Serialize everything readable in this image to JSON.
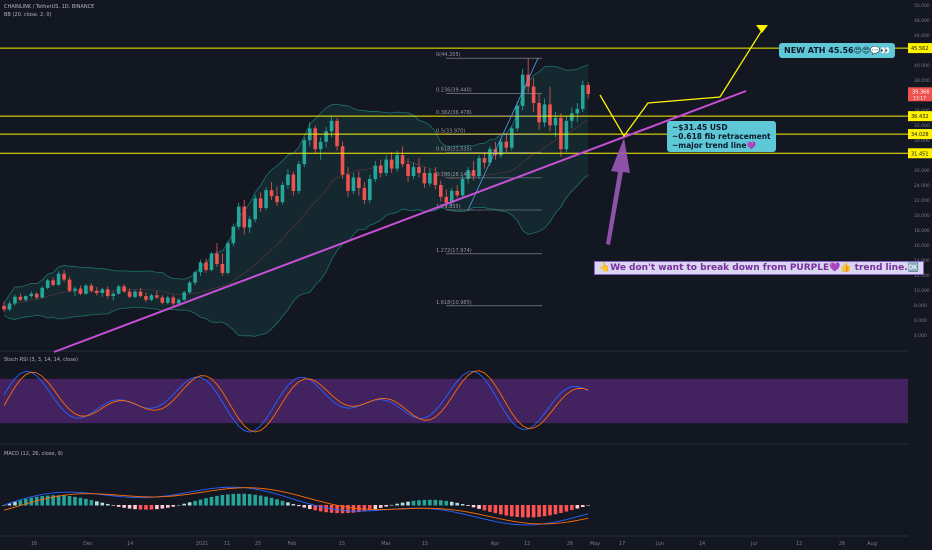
{
  "header": {
    "symbol": "CHAINLINK / TetherUS, 1D, BINANCE",
    "indicator": "BB (20, close, 2, 0)"
  },
  "panels": {
    "stoch_label": "Stoch RSI (3, 3, 14, 14, close)",
    "macd_label": "MACD (12, 26, close, 9)"
  },
  "annotations": {
    "ath": "NEW ATH 45.56😍😍💬👀",
    "fib_line1": "~$31.45 USD",
    "fib_line2": "~0.618 fib retracement",
    "fib_line3": "~major trend line💜",
    "warning": "👆We don't want to break down from PURPLE💜👍 trend line.🆗"
  },
  "colors": {
    "background": "#131722",
    "up": "#26a69a",
    "down": "#ef5350",
    "level": "#fff200",
    "trend": "#c84fd6",
    "fib": "#5ba0e8",
    "stoch_band": "#6a2c91",
    "stoch_k": "#2962ff",
    "stoch_d": "#ff6d00",
    "price_tag": "#ef5350"
  },
  "chart_data": {
    "type": "candlestick",
    "title": "CHAINLINK / TetherUS, 1D, BINANCE",
    "y_axis_labels": [
      "50.000",
      "48.000",
      "44.000",
      "42.000",
      "40.000",
      "38.000",
      "36.000",
      "34.000",
      "32.000",
      "30.000",
      "28.000",
      "26.000",
      "24.000",
      "22.000",
      "20.000",
      "18.000",
      "16.000",
      "14.000",
      "12.000",
      "10.000",
      "8.000",
      "6.000",
      "4.000"
    ],
    "x_axis_labels": [
      "16",
      "Dec",
      "14",
      "2021",
      "11",
      "25",
      "Feb",
      "15",
      "Mar",
      "15",
      "Apr",
      "12",
      "26",
      "May",
      "17",
      "Jun",
      "14",
      "Jul",
      "12",
      "26",
      "Aug"
    ],
    "price_scale": [
      6,
      50
    ],
    "horizontal_levels": [
      {
        "label": "45.562",
        "value": 45.562
      },
      {
        "label": "36.432",
        "value": 36.432
      },
      {
        "label": "34.028",
        "value": 34.028
      },
      {
        "label": "31.451",
        "value": 31.451
      }
    ],
    "current_price": {
      "label": "39.366",
      "value": 39.366,
      "countdown": "13:17"
    },
    "fibonacci": [
      {
        "label": "0(44.205)",
        "value": 44.2
      },
      {
        "label": "0.236(39.440)",
        "value": 39.44
      },
      {
        "label": "0.382(36.478)",
        "value": 36.48
      },
      {
        "label": "0.5(33.970)",
        "value": 33.97
      },
      {
        "label": "0.618(31.535)",
        "value": 31.54
      },
      {
        "label": "0.786(28.145)",
        "value": 28.15
      },
      {
        "label": "1(23.835)",
        "value": 23.84
      },
      {
        "label": "1.272(17.974)",
        "value": 17.97
      },
      {
        "label": "1.618(10.985)",
        "value": 10.99
      }
    ],
    "trend_line": {
      "start": {
        "x": "Nov 20",
        "price": 6.0
      },
      "end": {
        "x": "May 27",
        "price": 36.4
      }
    },
    "projection": [
      {
        "x": "May 7",
        "price": 37.0
      },
      {
        "x": "May 15",
        "price": 31.45
      },
      {
        "x": "May 20",
        "price": 35.0
      },
      {
        "x": "Jun 7",
        "price": 36.4
      },
      {
        "x": "Jun 20",
        "price": 45.56
      }
    ],
    "candles": [
      {
        "o": 11.0,
        "h": 11.5,
        "l": 10.2,
        "c": 10.5
      },
      {
        "o": 10.5,
        "h": 11.6,
        "l": 10.3,
        "c": 11.3
      },
      {
        "o": 11.3,
        "h": 12.5,
        "l": 11.0,
        "c": 12.2
      },
      {
        "o": 12.2,
        "h": 12.6,
        "l": 11.6,
        "c": 11.8
      },
      {
        "o": 11.8,
        "h": 12.4,
        "l": 11.5,
        "c": 12.3
      },
      {
        "o": 12.3,
        "h": 12.9,
        "l": 12.0,
        "c": 12.6
      },
      {
        "o": 12.6,
        "h": 12.8,
        "l": 11.9,
        "c": 12.1
      },
      {
        "o": 12.1,
        "h": 13.6,
        "l": 12.0,
        "c": 13.4
      },
      {
        "o": 13.4,
        "h": 14.6,
        "l": 13.2,
        "c": 14.4
      },
      {
        "o": 14.4,
        "h": 14.8,
        "l": 13.6,
        "c": 13.8
      },
      {
        "o": 13.8,
        "h": 15.6,
        "l": 13.7,
        "c": 15.3
      },
      {
        "o": 15.3,
        "h": 15.8,
        "l": 14.2,
        "c": 14.5
      },
      {
        "o": 14.5,
        "h": 14.9,
        "l": 12.8,
        "c": 13.0
      },
      {
        "o": 13.0,
        "h": 13.6,
        "l": 12.3,
        "c": 13.3
      },
      {
        "o": 13.3,
        "h": 13.7,
        "l": 12.4,
        "c": 12.6
      },
      {
        "o": 12.6,
        "h": 13.9,
        "l": 12.5,
        "c": 13.7
      },
      {
        "o": 13.7,
        "h": 14.0,
        "l": 12.8,
        "c": 13.0
      },
      {
        "o": 13.0,
        "h": 13.5,
        "l": 12.4,
        "c": 12.7
      },
      {
        "o": 12.7,
        "h": 13.4,
        "l": 12.2,
        "c": 13.2
      },
      {
        "o": 13.2,
        "h": 13.6,
        "l": 12.0,
        "c": 12.3
      },
      {
        "o": 12.3,
        "h": 12.9,
        "l": 11.7,
        "c": 12.6
      },
      {
        "o": 12.6,
        "h": 13.8,
        "l": 12.5,
        "c": 13.6
      },
      {
        "o": 13.6,
        "h": 13.9,
        "l": 12.7,
        "c": 12.9
      },
      {
        "o": 12.9,
        "h": 13.3,
        "l": 12.0,
        "c": 12.2
      },
      {
        "o": 12.2,
        "h": 13.1,
        "l": 12.0,
        "c": 12.9
      },
      {
        "o": 12.9,
        "h": 13.4,
        "l": 12.1,
        "c": 12.3
      },
      {
        "o": 12.3,
        "h": 12.8,
        "l": 11.5,
        "c": 11.8
      },
      {
        "o": 11.8,
        "h": 12.6,
        "l": 11.6,
        "c": 12.4
      },
      {
        "o": 12.4,
        "h": 13.0,
        "l": 11.9,
        "c": 12.1
      },
      {
        "o": 12.1,
        "h": 12.4,
        "l": 11.2,
        "c": 11.4
      },
      {
        "o": 11.4,
        "h": 12.3,
        "l": 11.2,
        "c": 12.1
      },
      {
        "o": 12.1,
        "h": 12.4,
        "l": 11.0,
        "c": 11.3
      },
      {
        "o": 11.3,
        "h": 12.0,
        "l": 11.1,
        "c": 11.8
      },
      {
        "o": 11.8,
        "h": 13.0,
        "l": 11.6,
        "c": 12.8
      },
      {
        "o": 12.8,
        "h": 14.3,
        "l": 12.6,
        "c": 14.1
      },
      {
        "o": 14.1,
        "h": 15.7,
        "l": 13.8,
        "c": 15.5
      },
      {
        "o": 15.5,
        "h": 17.2,
        "l": 15.0,
        "c": 16.8
      },
      {
        "o": 16.8,
        "h": 17.3,
        "l": 15.4,
        "c": 15.8
      },
      {
        "o": 15.8,
        "h": 18.2,
        "l": 15.6,
        "c": 18.0
      },
      {
        "o": 18.0,
        "h": 19.4,
        "l": 16.2,
        "c": 16.6
      },
      {
        "o": 16.6,
        "h": 18.0,
        "l": 15.0,
        "c": 15.4
      },
      {
        "o": 15.4,
        "h": 19.7,
        "l": 15.2,
        "c": 19.4
      },
      {
        "o": 19.4,
        "h": 22.0,
        "l": 19.0,
        "c": 21.6
      },
      {
        "o": 21.6,
        "h": 24.8,
        "l": 21.2,
        "c": 24.3
      },
      {
        "o": 24.3,
        "h": 25.2,
        "l": 20.6,
        "c": 21.5
      },
      {
        "o": 21.5,
        "h": 23.0,
        "l": 20.8,
        "c": 22.6
      },
      {
        "o": 22.6,
        "h": 25.9,
        "l": 22.2,
        "c": 25.4
      },
      {
        "o": 25.4,
        "h": 26.2,
        "l": 23.6,
        "c": 24.1
      },
      {
        "o": 24.1,
        "h": 26.9,
        "l": 23.8,
        "c": 26.5
      },
      {
        "o": 26.5,
        "h": 27.6,
        "l": 25.2,
        "c": 25.7
      },
      {
        "o": 25.7,
        "h": 27.0,
        "l": 24.4,
        "c": 24.9
      },
      {
        "o": 24.9,
        "h": 27.6,
        "l": 24.6,
        "c": 27.2
      },
      {
        "o": 27.2,
        "h": 29.3,
        "l": 26.7,
        "c": 28.6
      },
      {
        "o": 28.6,
        "h": 29.0,
        "l": 25.8,
        "c": 26.4
      },
      {
        "o": 26.4,
        "h": 30.4,
        "l": 26.0,
        "c": 30.0
      },
      {
        "o": 30.0,
        "h": 33.6,
        "l": 29.6,
        "c": 33.2
      },
      {
        "o": 33.2,
        "h": 35.6,
        "l": 32.4,
        "c": 34.8
      },
      {
        "o": 34.8,
        "h": 35.2,
        "l": 31.4,
        "c": 32.0
      },
      {
        "o": 32.0,
        "h": 33.6,
        "l": 30.6,
        "c": 33.0
      },
      {
        "o": 33.0,
        "h": 35.0,
        "l": 32.2,
        "c": 34.4
      },
      {
        "o": 34.4,
        "h": 36.4,
        "l": 33.6,
        "c": 35.8
      },
      {
        "o": 35.8,
        "h": 36.2,
        "l": 31.8,
        "c": 32.4
      },
      {
        "o": 32.4,
        "h": 33.0,
        "l": 28.0,
        "c": 28.6
      },
      {
        "o": 28.6,
        "h": 29.6,
        "l": 25.6,
        "c": 26.4
      },
      {
        "o": 26.4,
        "h": 28.8,
        "l": 26.0,
        "c": 28.2
      },
      {
        "o": 28.2,
        "h": 29.0,
        "l": 25.8,
        "c": 26.8
      },
      {
        "o": 26.8,
        "h": 27.6,
        "l": 24.6,
        "c": 25.2
      },
      {
        "o": 25.2,
        "h": 28.6,
        "l": 24.8,
        "c": 28.0
      },
      {
        "o": 28.0,
        "h": 30.4,
        "l": 27.6,
        "c": 29.8
      },
      {
        "o": 29.8,
        "h": 30.6,
        "l": 28.2,
        "c": 28.8
      },
      {
        "o": 28.8,
        "h": 31.2,
        "l": 28.4,
        "c": 30.6
      },
      {
        "o": 30.6,
        "h": 31.6,
        "l": 28.8,
        "c": 29.4
      },
      {
        "o": 29.4,
        "h": 31.8,
        "l": 29.0,
        "c": 31.2
      },
      {
        "o": 31.2,
        "h": 32.4,
        "l": 29.6,
        "c": 30.0
      },
      {
        "o": 30.0,
        "h": 30.8,
        "l": 27.6,
        "c": 28.4
      },
      {
        "o": 28.4,
        "h": 30.2,
        "l": 28.0,
        "c": 29.6
      },
      {
        "o": 29.6,
        "h": 30.8,
        "l": 28.2,
        "c": 28.8
      },
      {
        "o": 28.8,
        "h": 29.6,
        "l": 26.8,
        "c": 27.4
      },
      {
        "o": 27.4,
        "h": 29.4,
        "l": 27.0,
        "c": 28.8
      },
      {
        "o": 28.8,
        "h": 29.6,
        "l": 26.6,
        "c": 27.2
      },
      {
        "o": 27.2,
        "h": 27.8,
        "l": 25.0,
        "c": 25.6
      },
      {
        "o": 25.6,
        "h": 26.6,
        "l": 24.2,
        "c": 24.8
      },
      {
        "o": 24.8,
        "h": 26.8,
        "l": 24.4,
        "c": 26.4
      },
      {
        "o": 26.4,
        "h": 27.2,
        "l": 25.4,
        "c": 25.8
      },
      {
        "o": 25.8,
        "h": 28.4,
        "l": 25.4,
        "c": 28.0
      },
      {
        "o": 28.0,
        "h": 29.6,
        "l": 27.4,
        "c": 29.2
      },
      {
        "o": 29.2,
        "h": 30.4,
        "l": 27.8,
        "c": 28.4
      },
      {
        "o": 28.4,
        "h": 31.2,
        "l": 28.0,
        "c": 30.8
      },
      {
        "o": 30.8,
        "h": 31.6,
        "l": 29.4,
        "c": 30.2
      },
      {
        "o": 30.2,
        "h": 32.4,
        "l": 29.8,
        "c": 32.0
      },
      {
        "o": 32.0,
        "h": 33.0,
        "l": 30.6,
        "c": 31.2
      },
      {
        "o": 31.2,
        "h": 33.4,
        "l": 30.8,
        "c": 33.0
      },
      {
        "o": 33.0,
        "h": 34.0,
        "l": 31.6,
        "c": 32.2
      },
      {
        "o": 32.2,
        "h": 35.2,
        "l": 31.8,
        "c": 34.8
      },
      {
        "o": 34.8,
        "h": 38.4,
        "l": 34.4,
        "c": 37.8
      },
      {
        "o": 37.8,
        "h": 42.8,
        "l": 37.2,
        "c": 42.0
      },
      {
        "o": 42.0,
        "h": 44.2,
        "l": 39.6,
        "c": 40.4
      },
      {
        "o": 40.4,
        "h": 41.6,
        "l": 37.0,
        "c": 38.2
      },
      {
        "o": 38.2,
        "h": 39.4,
        "l": 34.6,
        "c": 35.6
      },
      {
        "o": 35.6,
        "h": 38.8,
        "l": 35.0,
        "c": 38.0
      },
      {
        "o": 38.0,
        "h": 40.4,
        "l": 34.4,
        "c": 35.2
      },
      {
        "o": 35.2,
        "h": 37.0,
        "l": 33.6,
        "c": 36.2
      },
      {
        "o": 36.2,
        "h": 36.8,
        "l": 31.0,
        "c": 32.0
      },
      {
        "o": 32.0,
        "h": 36.4,
        "l": 31.6,
        "c": 35.8
      },
      {
        "o": 35.8,
        "h": 37.6,
        "l": 34.8,
        "c": 36.8
      },
      {
        "o": 36.8,
        "h": 38.2,
        "l": 35.6,
        "c": 37.4
      },
      {
        "o": 37.4,
        "h": 41.2,
        "l": 37.0,
        "c": 40.6
      },
      {
        "o": 40.6,
        "h": 41.0,
        "l": 38.8,
        "c": 39.4
      }
    ]
  }
}
